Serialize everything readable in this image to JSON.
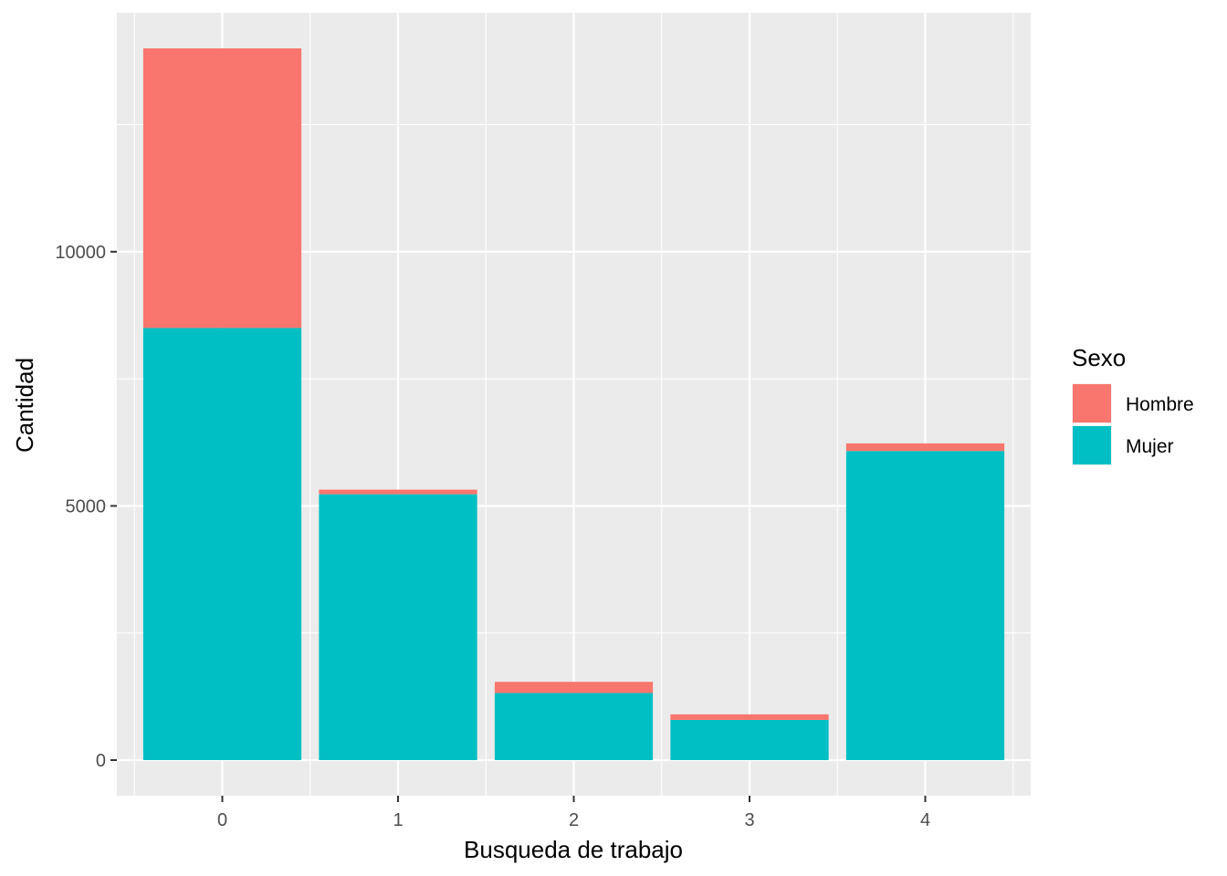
{
  "chart_data": {
    "type": "bar",
    "stacked": true,
    "categories": [
      "0",
      "1",
      "2",
      "3",
      "4"
    ],
    "series": [
      {
        "name": "Mujer",
        "color": "#00BFC4",
        "values": [
          8500,
          5230,
          1320,
          790,
          6080
        ]
      },
      {
        "name": "Hombre",
        "color": "#F8766D",
        "values": [
          5500,
          90,
          220,
          110,
          150
        ]
      }
    ],
    "xlabel": "Busqueda de trabajo",
    "ylabel": "Cantidad",
    "ylim": [
      -700,
      14700
    ],
    "y_ticks": [
      0,
      5000,
      10000
    ],
    "y_tick_labels": [
      "0",
      "5000",
      "10000"
    ],
    "y_minor_ticks": [
      2500,
      7500,
      12500
    ],
    "grid": true,
    "panel_background": "#EBEBEB",
    "legend": {
      "title": "Sexo",
      "placement": "right",
      "entries": [
        "Hombre",
        "Mujer"
      ]
    }
  }
}
